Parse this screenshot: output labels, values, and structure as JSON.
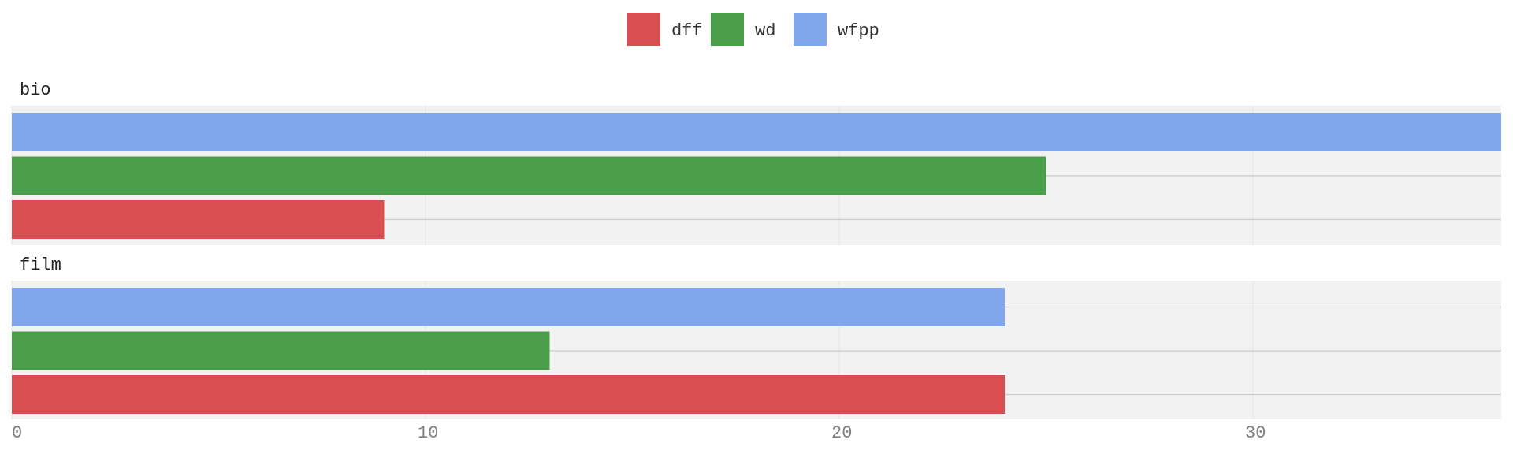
{
  "chart_data": {
    "type": "bar",
    "orientation": "horizontal",
    "grouping": "faceted",
    "legend": {
      "placement": "top-center",
      "entries": [
        "dff",
        "wd",
        "wfpp"
      ]
    },
    "series": [
      {
        "name": "dff",
        "color": "#d94e50"
      },
      {
        "name": "wd",
        "color": "#4a9e4a"
      },
      {
        "name": "wfpp",
        "color": "#80a6ec"
      }
    ],
    "facets": [
      {
        "label": "bio",
        "values": {
          "wfpp": 36,
          "wd": 25,
          "dff": 9
        }
      },
      {
        "label": "film",
        "values": {
          "wfpp": 24,
          "wd": 13,
          "dff": 24
        }
      }
    ],
    "xlim": [
      0,
      36
    ],
    "x_ticks": [
      "0",
      "10",
      "20",
      "30"
    ],
    "grid": true,
    "panel_background": "#f2f2f2",
    "grid_color": "#e6e6e6",
    "tick_label_color": "#808080"
  }
}
